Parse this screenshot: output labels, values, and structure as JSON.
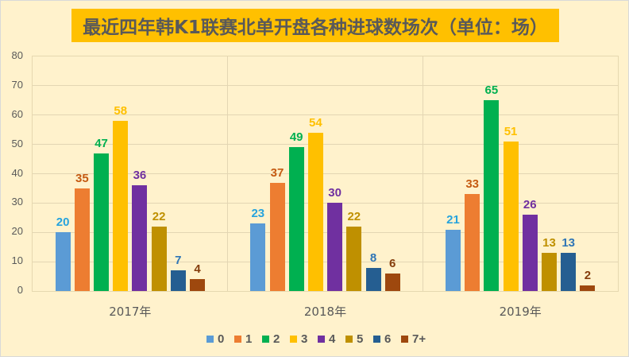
{
  "chart_data": {
    "type": "bar",
    "title": "最近四年韩K1联赛北单开盘各种进球数场次（单位：场）",
    "xlabel": "",
    "ylabel": "",
    "ylim": [
      0,
      80
    ],
    "yticks": [
      0,
      10,
      20,
      30,
      40,
      50,
      60,
      70,
      80
    ],
    "grid": true,
    "legend_position": "bottom",
    "categories": [
      "2017年",
      "2018年",
      "2019年"
    ],
    "series": [
      {
        "name": "0",
        "values": [
          20,
          23,
          21
        ],
        "color": "#5B9BD5",
        "label_color": "#26A3DD"
      },
      {
        "name": "1",
        "values": [
          35,
          37,
          33
        ],
        "color": "#ED7D31",
        "label_color": "#C55A11"
      },
      {
        "name": "2",
        "values": [
          47,
          49,
          65
        ],
        "color": "#00B050",
        "label_color": "#00B050"
      },
      {
        "name": "3",
        "values": [
          58,
          54,
          51
        ],
        "color": "#FFC000",
        "label_color": "#FFC000"
      },
      {
        "name": "4",
        "values": [
          36,
          30,
          26
        ],
        "color": "#7030A0",
        "label_color": "#7030A0"
      },
      {
        "name": "5",
        "values": [
          22,
          22,
          13
        ],
        "color": "#BF9000",
        "label_color": "#BF9000"
      },
      {
        "name": "6",
        "values": [
          7,
          8,
          13
        ],
        "color": "#255E91",
        "label_color": "#2E75B6"
      },
      {
        "name": "7+",
        "values": [
          4,
          6,
          2
        ],
        "color": "#9E480E",
        "label_color": "#843C0C"
      }
    ]
  },
  "colors": {
    "background": "#FFF2CC",
    "title_background": "#FFC000",
    "title_text": "#595959",
    "axis_text": "#595959"
  }
}
